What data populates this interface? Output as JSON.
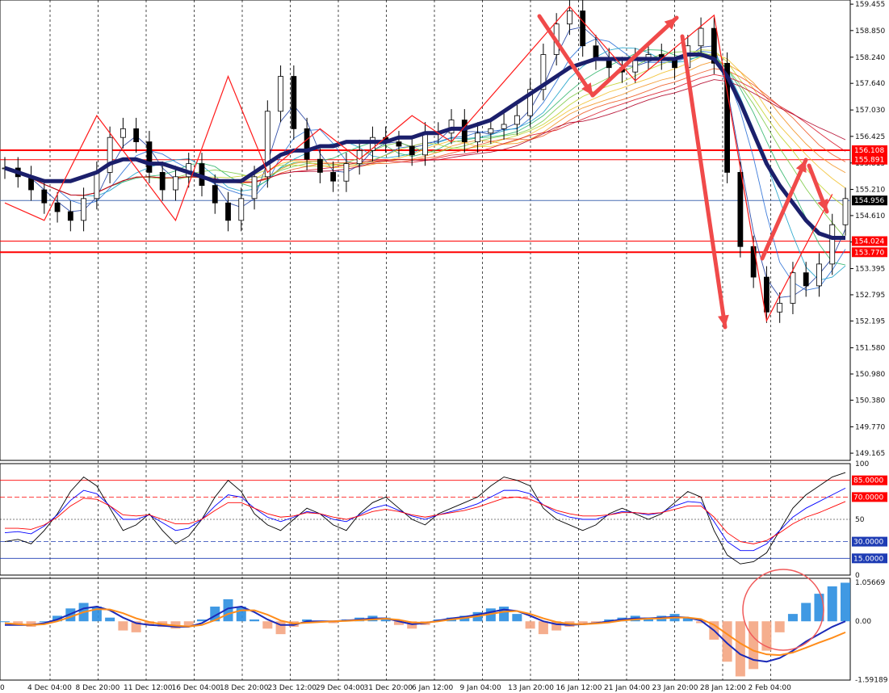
{
  "chart_data": [
    {
      "type": "candlestick",
      "instrument_panel": "price",
      "ylim": [
        149.0,
        159.55
      ],
      "y_ticks": [
        "159.455",
        "158.850",
        "158.240",
        "157.640",
        "157.030",
        "156.425",
        "155.815",
        "155.210",
        "154.610",
        "154.005",
        "153.395",
        "152.795",
        "152.195",
        "151.580",
        "150.980",
        "150.380",
        "149.770",
        "149.165"
      ],
      "x_ticks": [
        "0",
        "4 Dec 04:00",
        "8 Dec 20:00",
        "11 Dec 12:00",
        "16 Dec 04:00",
        "18 Dec 20:00",
        "23 Dec 12:00",
        "29 Dec 04:00",
        "31 Dec 20:00",
        "6 Jan 12:00",
        "9 Jan 04:00",
        "13 Jan 20:00",
        "16 Jan 12:00",
        "21 Jan 04:00",
        "23 Jan 20:00",
        "28 Jan 12:00",
        "2 Feb 04:00"
      ],
      "series": [
        {
          "values": [
            155.7,
            155.5,
            155.2,
            154.9,
            154.7,
            154.5,
            155.0,
            155.6,
            156.4,
            156.6,
            156.3,
            155.6,
            155.2,
            155.5,
            155.8,
            155.3,
            154.9,
            154.5,
            155.0,
            155.5,
            157.0,
            157.8,
            156.6,
            155.9,
            155.6,
            155.4,
            155.8,
            156.1,
            156.4,
            156.3,
            156.2,
            156.0,
            156.5,
            156.5,
            156.8,
            156.3,
            156.5,
            156.6,
            156.7,
            156.9,
            157.5,
            158.3,
            159.0,
            159.3,
            158.5,
            158.2,
            158.0,
            157.9,
            158.2,
            158.3,
            158.2,
            158.0,
            158.5,
            158.9,
            158.1,
            155.6,
            153.9,
            153.2,
            152.4,
            152.6,
            153.3,
            153.0,
            153.5,
            154.4,
            155.0
          ]
        },
        {
          "name": "moving-average-thick",
          "values": [
            155.7,
            155.6,
            155.5,
            155.4,
            155.4,
            155.4,
            155.5,
            155.6,
            155.8,
            155.9,
            155.9,
            155.8,
            155.8,
            155.7,
            155.6,
            155.5,
            155.4,
            155.4,
            155.4,
            155.6,
            155.8,
            156.0,
            156.1,
            156.1,
            156.2,
            156.2,
            156.3,
            156.3,
            156.3,
            156.3,
            156.4,
            156.4,
            156.5,
            156.5,
            156.6,
            156.6,
            156.7,
            156.8,
            157.0,
            157.2,
            157.4,
            157.6,
            157.8,
            158.0,
            158.1,
            158.2,
            158.2,
            158.2,
            158.2,
            158.2,
            158.2,
            158.2,
            158.3,
            158.3,
            158.2,
            157.8,
            157.2,
            156.5,
            155.8,
            155.3,
            154.9,
            154.5,
            154.2,
            154.1,
            154.1
          ]
        }
      ],
      "annotations_price": [
        "156.108",
        "155.891",
        "154.956",
        "154.024",
        "153.770"
      ]
    },
    {
      "type": "line",
      "instrument_panel": "oscillator",
      "ylim": [
        0,
        100
      ],
      "y_ticks": [
        "100",
        "50",
        "0"
      ],
      "levels": [
        "85.0000",
        "70.0000",
        "30.0000",
        "15.0000"
      ],
      "series": [
        {
          "values": [
            30,
            32,
            28,
            40,
            55,
            75,
            88,
            80,
            60,
            40,
            45,
            55,
            40,
            28,
            35,
            50,
            70,
            85,
            75,
            55,
            45,
            40,
            50,
            60,
            55,
            45,
            40,
            55,
            65,
            70,
            60,
            50,
            45,
            55,
            60,
            65,
            70,
            80,
            88,
            85,
            80,
            60,
            50,
            45,
            40,
            45,
            55,
            60,
            55,
            50,
            55,
            65,
            75,
            70,
            40,
            18,
            10,
            12,
            20,
            40,
            60,
            72,
            80,
            88,
            92
          ]
        },
        {
          "values": [
            38,
            39,
            37,
            44,
            54,
            67,
            76,
            73,
            62,
            50,
            50,
            54,
            47,
            40,
            42,
            50,
            62,
            72,
            70,
            60,
            52,
            48,
            52,
            57,
            55,
            50,
            48,
            54,
            60,
            63,
            58,
            53,
            50,
            54,
            57,
            60,
            64,
            70,
            76,
            76,
            73,
            63,
            56,
            52,
            50,
            50,
            54,
            57,
            56,
            54,
            56,
            62,
            66,
            65,
            48,
            30,
            22,
            22,
            28,
            40,
            52,
            60,
            66,
            72,
            78
          ]
        },
        {
          "values": [
            42,
            42,
            41,
            45,
            52,
            62,
            69,
            68,
            62,
            54,
            53,
            54,
            50,
            46,
            46,
            50,
            58,
            65,
            65,
            60,
            55,
            52,
            53,
            56,
            55,
            52,
            50,
            53,
            57,
            59,
            57,
            54,
            52,
            54,
            56,
            58,
            61,
            65,
            69,
            70,
            68,
            63,
            58,
            55,
            53,
            53,
            54,
            56,
            56,
            55,
            56,
            59,
            62,
            62,
            52,
            38,
            30,
            28,
            31,
            38,
            46,
            52,
            56,
            61,
            66
          ]
        }
      ]
    },
    {
      "type": "bar",
      "instrument_panel": "histogram",
      "ylim": [
        -1.6,
        1.17
      ],
      "y_ticks": [
        "1.05669",
        "0.00",
        "-1.59189"
      ],
      "series": [
        {
          "values": [
            0.0,
            -0.1,
            -0.15,
            0.0,
            0.15,
            0.35,
            0.5,
            0.4,
            0.1,
            -0.25,
            -0.3,
            -0.1,
            -0.15,
            -0.2,
            -0.15,
            0.05,
            0.4,
            0.6,
            0.4,
            0.05,
            -0.2,
            -0.35,
            -0.15,
            0.05,
            0.0,
            -0.05,
            0.05,
            0.1,
            0.15,
            0.1,
            -0.1,
            -0.2,
            -0.1,
            0.05,
            0.1,
            0.15,
            0.25,
            0.35,
            0.4,
            0.2,
            -0.2,
            -0.35,
            -0.25,
            -0.15,
            -0.1,
            -0.05,
            0.05,
            0.1,
            0.15,
            0.1,
            0.15,
            0.2,
            0.1,
            -0.05,
            -0.5,
            -1.1,
            -1.5,
            -1.3,
            -0.8,
            -0.3,
            0.2,
            0.5,
            0.75,
            0.95,
            1.05
          ]
        },
        {
          "values": [
            -0.1,
            -0.1,
            -0.1,
            -0.05,
            0.05,
            0.2,
            0.35,
            0.4,
            0.3,
            0.1,
            -0.05,
            -0.1,
            -0.12,
            -0.15,
            -0.15,
            -0.05,
            0.15,
            0.35,
            0.4,
            0.25,
            0.05,
            -0.1,
            -0.1,
            0.0,
            0.0,
            0.0,
            0.02,
            0.05,
            0.08,
            0.08,
            0.0,
            -0.08,
            -0.05,
            0.02,
            0.08,
            0.12,
            0.18,
            0.25,
            0.32,
            0.28,
            0.15,
            0.0,
            -0.08,
            -0.1,
            -0.08,
            -0.05,
            0.0,
            0.05,
            0.08,
            0.08,
            0.1,
            0.12,
            0.1,
            0.02,
            -0.25,
            -0.6,
            -0.9,
            -1.05,
            -1.1,
            -1.0,
            -0.8,
            -0.55,
            -0.35,
            -0.15,
            0.0
          ]
        },
        {
          "values": [
            -0.05,
            -0.08,
            -0.1,
            -0.08,
            0.0,
            0.12,
            0.25,
            0.33,
            0.32,
            0.22,
            0.08,
            -0.02,
            -0.08,
            -0.12,
            -0.14,
            -0.1,
            0.03,
            0.2,
            0.3,
            0.3,
            0.18,
            0.02,
            -0.06,
            -0.04,
            -0.02,
            0.0,
            0.01,
            0.03,
            0.05,
            0.07,
            0.04,
            -0.03,
            -0.04,
            0.0,
            0.05,
            0.09,
            0.14,
            0.2,
            0.26,
            0.28,
            0.2,
            0.08,
            -0.02,
            -0.07,
            -0.08,
            -0.06,
            -0.03,
            0.02,
            0.05,
            0.07,
            0.08,
            0.1,
            0.1,
            0.06,
            -0.1,
            -0.35,
            -0.6,
            -0.8,
            -0.9,
            -0.92,
            -0.85,
            -0.72,
            -0.58,
            -0.45,
            -0.3
          ]
        }
      ]
    }
  ]
}
